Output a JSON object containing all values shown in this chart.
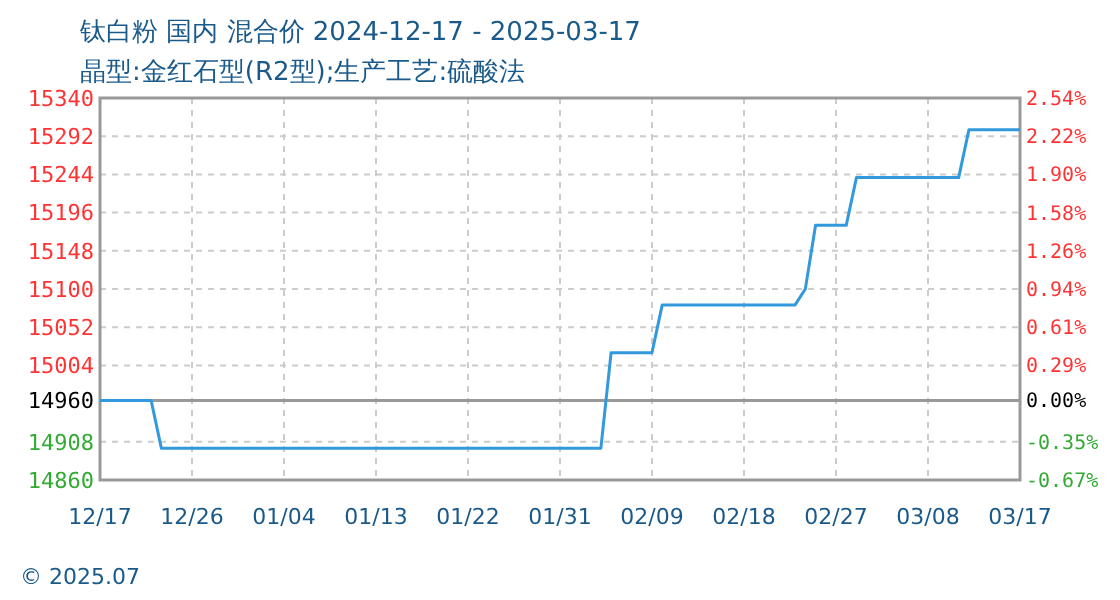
{
  "chart_data": {
    "type": "line",
    "title": "钛白粉 国内 混合价 2024-12-17 - 2025-03-17",
    "subtitle": "晶型:金红石型(R2型);生产工艺:硫酸法",
    "x": [
      "2024-12-17",
      "2024-12-22",
      "2024-12-23",
      "2025-02-04",
      "2025-02-05",
      "2025-02-09",
      "2025-02-10",
      "2025-02-23",
      "2025-02-24",
      "2025-02-25",
      "2025-02-28",
      "2025-03-01",
      "2025-03-11",
      "2025-03-12",
      "2025-03-17"
    ],
    "series": [
      {
        "color": "#3399dd",
        "values": [
          14960,
          14960,
          14900,
          14900,
          15020,
          15020,
          15080,
          15080,
          15100,
          15180,
          15180,
          15240,
          15240,
          15300,
          15300
        ]
      }
    ],
    "xlim": [
      "2024-12-17",
      "2025-03-17"
    ],
    "xticks": [
      {
        "value": "2024-12-17",
        "label": "12/17"
      },
      {
        "value": "2024-12-26",
        "label": "12/26"
      },
      {
        "value": "2025-01-04",
        "label": "01/04"
      },
      {
        "value": "2025-01-13",
        "label": "01/13"
      },
      {
        "value": "2025-01-22",
        "label": "01/22"
      },
      {
        "value": "2025-01-31",
        "label": "01/31"
      },
      {
        "value": "2025-02-09",
        "label": "02/09"
      },
      {
        "value": "2025-02-18",
        "label": "02/18"
      },
      {
        "value": "2025-02-27",
        "label": "02/27"
      },
      {
        "value": "2025-03-08",
        "label": "03/08"
      },
      {
        "value": "2025-03-17",
        "label": "03/17"
      }
    ],
    "ylim": [
      14860,
      15340
    ],
    "yticks": [
      14860,
      14908,
      14960,
      15004,
      15052,
      15100,
      15148,
      15196,
      15244,
      15292,
      15340
    ],
    "y2lim": [
      -0.668,
      2.54
    ],
    "y2ticks": [
      {
        "value": -0.668,
        "label": "-0.67%"
      },
      {
        "value": -0.348,
        "label": "-0.35%"
      },
      {
        "value": 0,
        "label": "0.00%"
      },
      {
        "value": 0.294,
        "label": "0.29%"
      },
      {
        "value": 0.615,
        "label": "0.61%"
      },
      {
        "value": 0.936,
        "label": "0.94%"
      },
      {
        "value": 1.257,
        "label": "1.26%"
      },
      {
        "value": 1.578,
        "label": "1.58%"
      },
      {
        "value": 1.898,
        "label": "1.90%"
      },
      {
        "value": 2.219,
        "label": "2.22%"
      },
      {
        "value": 2.54,
        "label": "2.54%"
      }
    ],
    "ref_lines": [
      {
        "axis": "y",
        "value": 14960,
        "color": "#999999"
      }
    ],
    "grid": true,
    "line_style": "solid",
    "annotations": [
      "© 2025.07"
    ]
  }
}
